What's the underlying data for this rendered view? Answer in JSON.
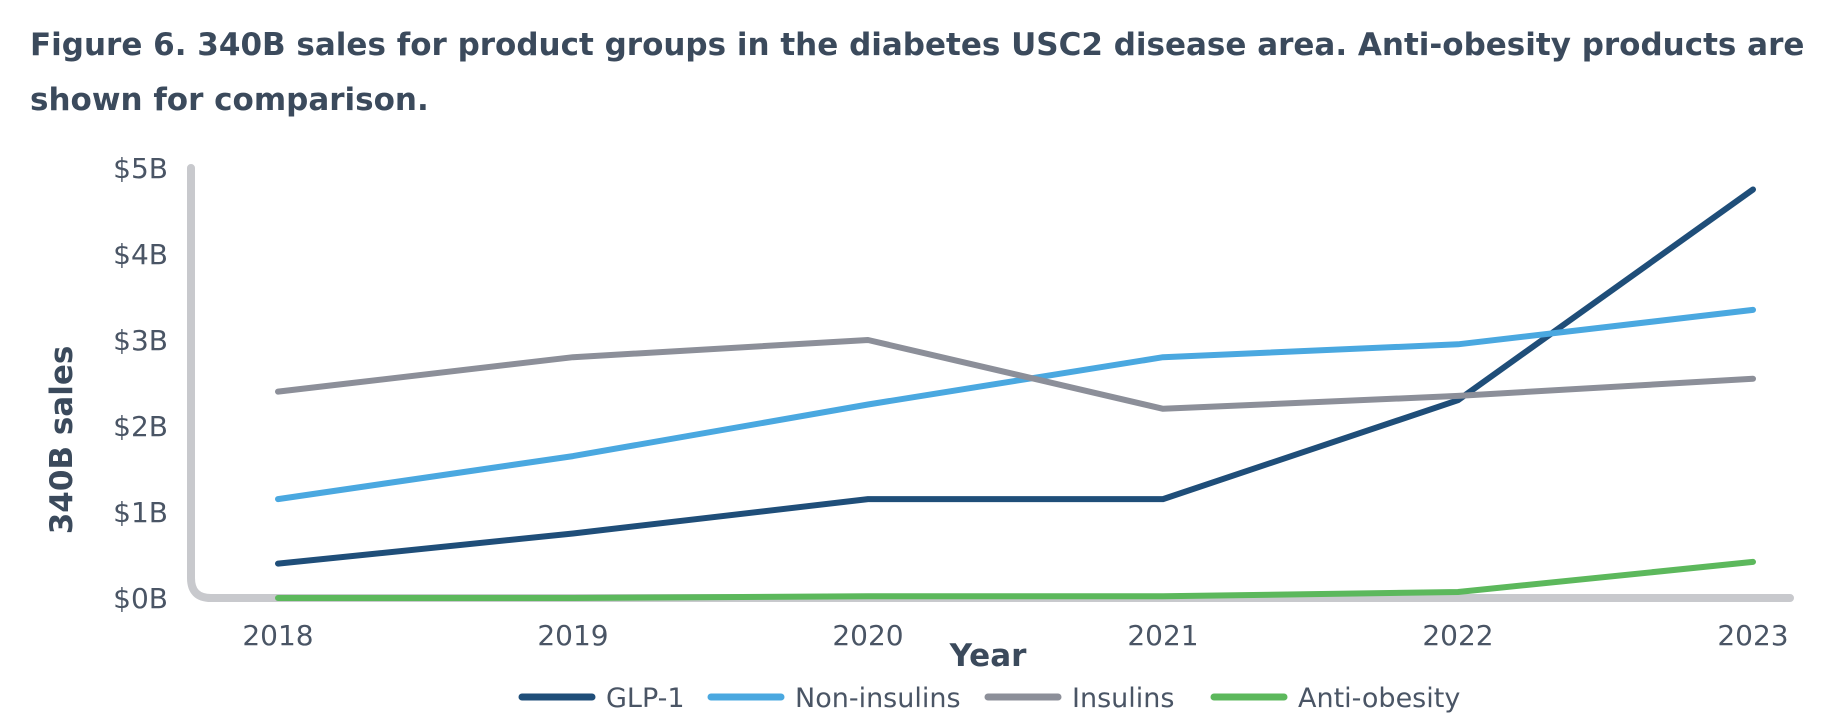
{
  "figure": {
    "title": "Figure 6. 340B sales for product groups in the diabetes USC2 disease area. Anti-obesity products are shown for comparison."
  },
  "chart_data": {
    "type": "line",
    "xlabel": "Year",
    "ylabel": "340B sales",
    "categories": [
      "2018",
      "2019",
      "2020",
      "2021",
      "2022",
      "2023"
    ],
    "yticks": [
      "$0B",
      "$1B",
      "$2B",
      "$3B",
      "$4B",
      "$5B"
    ],
    "ylim": [
      0,
      5
    ],
    "grid": false,
    "legend_position": "bottom",
    "series": [
      {
        "name": "GLP-1",
        "color": "#1f4e79",
        "values": [
          0.4,
          0.75,
          1.15,
          1.15,
          2.3,
          4.75
        ]
      },
      {
        "name": "Non-insulins",
        "color": "#4aa8e0",
        "values": [
          1.15,
          1.65,
          2.25,
          2.8,
          2.95,
          3.35
        ]
      },
      {
        "name": "Insulins",
        "color": "#8c8f99",
        "values": [
          2.4,
          2.8,
          3.0,
          2.2,
          2.35,
          2.55
        ]
      },
      {
        "name": "Anti-obesity",
        "color": "#5cb85c",
        "values": [
          0.0,
          0.0,
          0.02,
          0.02,
          0.07,
          0.42
        ]
      }
    ]
  }
}
